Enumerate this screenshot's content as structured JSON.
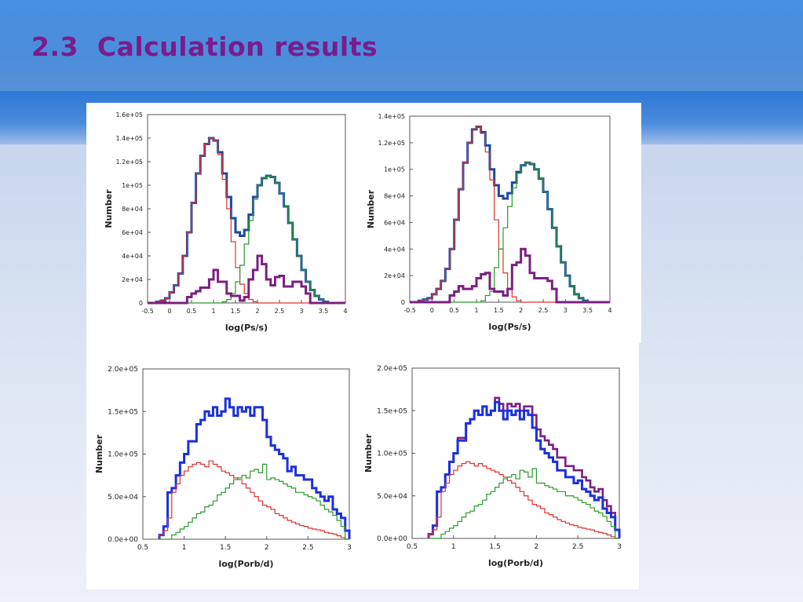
{
  "slide": {
    "title": "2.3  Calculation results"
  },
  "colors": {
    "title": "#7a1c8c",
    "blue": "#1a2fe0",
    "navy": "#1a4aa0",
    "purple": "#7a2080",
    "red": "#e03030",
    "green": "#2a9a2a"
  },
  "chart_data": [
    {
      "type": "line",
      "xlabel": "log(Ps/s)",
      "ylabel": "Number",
      "xlim": [
        -0.5,
        4
      ],
      "ylim": [
        0,
        160000
      ],
      "xticks": [
        "-0.5",
        "0",
        "0.5",
        "1",
        "1.5",
        "2",
        "2.5",
        "3",
        "3.5",
        "4"
      ],
      "yticks": [
        "0",
        "2e+04",
        "4e+04",
        "6e+04",
        "8e+04",
        "1e+05",
        "1.2e+05",
        "1.4e+05",
        "1.6e+05"
      ],
      "step": 0.1,
      "x": [
        -0.5,
        -0.4,
        -0.3,
        -0.2,
        -0.1,
        0,
        0.1,
        0.2,
        0.3,
        0.4,
        0.5,
        0.6,
        0.7,
        0.8,
        0.9,
        1,
        1.1,
        1.2,
        1.3,
        1.4,
        1.5,
        1.6,
        1.7,
        1.8,
        1.9,
        2,
        2.1,
        2.2,
        2.3,
        2.4,
        2.5,
        2.6,
        2.7,
        2.8,
        2.9,
        3,
        3.1,
        3.2,
        3.3,
        3.4,
        3.5,
        3.6,
        3.7,
        3.8,
        3.9
      ],
      "series": [
        {
          "key": "total",
          "color": "#1a4aa0",
          "values": [
            0,
            0,
            1000,
            2000,
            4000,
            9000,
            15000,
            25000,
            40000,
            60000,
            85000,
            110000,
            125000,
            135000,
            140000,
            138000,
            128000,
            110000,
            90000,
            72000,
            60000,
            57000,
            62000,
            75000,
            90000,
            100000,
            106000,
            108000,
            107000,
            102000,
            93000,
            82000,
            68000,
            54000,
            40000,
            28000,
            18000,
            11000,
            6000,
            3000,
            1000,
            0,
            0,
            0,
            0
          ]
        },
        {
          "key": "first-peak",
          "color": "#e03030",
          "values": [
            0,
            0,
            1000,
            2000,
            4000,
            9000,
            15000,
            25000,
            40000,
            60000,
            85000,
            110000,
            125000,
            135000,
            140000,
            138000,
            126000,
            105000,
            80000,
            52000,
            30000,
            16000,
            8000,
            3000,
            1000,
            0,
            0,
            0,
            0,
            0,
            0,
            0,
            0,
            0,
            0,
            0,
            0,
            0,
            0,
            0,
            0,
            0,
            0,
            0,
            0
          ]
        },
        {
          "key": "second-peak",
          "color": "#2a9a2a",
          "values": [
            0,
            0,
            0,
            0,
            0,
            0,
            0,
            0,
            0,
            0,
            0,
            0,
            0,
            0,
            0,
            0,
            0,
            1000,
            3000,
            8000,
            18000,
            32000,
            50000,
            70000,
            88000,
            100000,
            106000,
            108000,
            107000,
            102000,
            93000,
            82000,
            68000,
            54000,
            40000,
            28000,
            18000,
            11000,
            6000,
            3000,
            1000,
            0,
            0,
            0,
            0
          ]
        },
        {
          "key": "subset",
          "color": "#7a2080",
          "values": [
            0,
            0,
            0,
            0,
            0,
            0,
            0,
            0,
            0,
            5000,
            8000,
            10000,
            13000,
            13000,
            20000,
            28000,
            18000,
            18000,
            8000,
            6000,
            6000,
            2000,
            5000,
            20000,
            28000,
            40000,
            33000,
            20000,
            15000,
            22000,
            23000,
            14000,
            14000,
            18000,
            18000,
            14000,
            8000,
            0,
            0,
            0,
            0,
            0,
            0,
            0,
            0
          ]
        }
      ]
    },
    {
      "type": "line",
      "xlabel": "log(Ps/s)",
      "ylabel": "Number",
      "xlim": [
        -0.5,
        4
      ],
      "ylim": [
        0,
        140000
      ],
      "xticks": [
        "-0.5",
        "0",
        "0.5",
        "1",
        "1.5",
        "2",
        "2.5",
        "3",
        "3.5",
        "4"
      ],
      "yticks": [
        "0",
        "2e+04",
        "4e+04",
        "6e+04",
        "8e+04",
        "1e+05",
        "1.2e+05",
        "1.4e+05"
      ],
      "step": 0.1,
      "x": [
        -0.5,
        -0.4,
        -0.3,
        -0.2,
        -0.1,
        0,
        0.1,
        0.2,
        0.3,
        0.4,
        0.5,
        0.6,
        0.7,
        0.8,
        0.9,
        1,
        1.1,
        1.2,
        1.3,
        1.4,
        1.5,
        1.6,
        1.7,
        1.8,
        1.9,
        2,
        2.1,
        2.2,
        2.3,
        2.4,
        2.5,
        2.6,
        2.7,
        2.8,
        2.9,
        3,
        3.1,
        3.2,
        3.3,
        3.4,
        3.5,
        3.6,
        3.7,
        3.8,
        3.9
      ],
      "series": [
        {
          "key": "total",
          "color": "#1a4aa0",
          "values": [
            0,
            0,
            1000,
            2000,
            3000,
            6000,
            10000,
            16000,
            25000,
            40000,
            62000,
            85000,
            105000,
            120000,
            130000,
            132000,
            128000,
            118000,
            100000,
            88000,
            80000,
            78000,
            82000,
            90000,
            98000,
            103000,
            105000,
            104000,
            100000,
            93000,
            83000,
            70000,
            56000,
            42000,
            30000,
            20000,
            12000,
            6000,
            3000,
            1000,
            0,
            0,
            0,
            0,
            0
          ]
        },
        {
          "key": "first-peak",
          "color": "#e03030",
          "values": [
            0,
            0,
            1000,
            2000,
            3000,
            6000,
            10000,
            16000,
            25000,
            40000,
            62000,
            85000,
            105000,
            120000,
            130000,
            132000,
            127000,
            113000,
            92000,
            62000,
            40000,
            22000,
            10000,
            4000,
            1000,
            0,
            0,
            0,
            0,
            0,
            0,
            0,
            0,
            0,
            0,
            0,
            0,
            0,
            0,
            0,
            0,
            0,
            0,
            0,
            0
          ]
        },
        {
          "key": "second-peak",
          "color": "#2a9a2a",
          "values": [
            0,
            0,
            0,
            0,
            0,
            0,
            0,
            0,
            0,
            0,
            0,
            0,
            0,
            0,
            0,
            0,
            1000,
            5000,
            8000,
            26000,
            40000,
            56000,
            72000,
            86000,
            97000,
            103000,
            105000,
            104000,
            100000,
            93000,
            83000,
            70000,
            56000,
            42000,
            30000,
            20000,
            12000,
            6000,
            3000,
            1000,
            0,
            0,
            0,
            0,
            0
          ]
        },
        {
          "key": "subset",
          "color": "#7a2080",
          "values": [
            0,
            0,
            0,
            0,
            0,
            0,
            0,
            0,
            0,
            5000,
            8000,
            12000,
            10000,
            10000,
            12000,
            18000,
            21000,
            22000,
            10000,
            8000,
            8000,
            5000,
            10000,
            28000,
            30000,
            40000,
            35000,
            22000,
            18000,
            18000,
            18000,
            16000,
            10000,
            0,
            0,
            0,
            0,
            0,
            0,
            0,
            0,
            0,
            0,
            0,
            0
          ]
        }
      ]
    },
    {
      "type": "line",
      "xlabel": "log(Porb/d)",
      "ylabel": "Number",
      "xlim": [
        0.5,
        3
      ],
      "ylim": [
        0,
        200000
      ],
      "xticks": [
        "0.5",
        "1",
        "1.5",
        "2",
        "2.5",
        "3"
      ],
      "yticks": [
        "0.0e+00",
        "5.0e+04",
        "1.0e+05",
        "1.5e+05",
        "2.0e+05"
      ],
      "step": 0.05,
      "x": [
        0.7,
        0.75,
        0.8,
        0.85,
        0.9,
        0.95,
        1,
        1.05,
        1.1,
        1.15,
        1.2,
        1.25,
        1.3,
        1.35,
        1.4,
        1.45,
        1.5,
        1.55,
        1.6,
        1.65,
        1.7,
        1.75,
        1.8,
        1.85,
        1.9,
        1.95,
        2,
        2.05,
        2.1,
        2.15,
        2.2,
        2.25,
        2.3,
        2.35,
        2.4,
        2.45,
        2.5,
        2.55,
        2.6,
        2.65,
        2.7,
        2.75,
        2.8,
        2.85,
        2.9,
        2.95
      ],
      "series": [
        {
          "key": "total",
          "color": "#1a2fe0",
          "values": [
            5000,
            15000,
            55000,
            60000,
            75000,
            90000,
            100000,
            115000,
            115000,
            135000,
            140000,
            150000,
            145000,
            155000,
            145000,
            150000,
            165000,
            155000,
            145000,
            155000,
            150000,
            155000,
            145000,
            155000,
            155000,
            140000,
            120000,
            110000,
            105000,
            100000,
            95000,
            80000,
            85000,
            75000,
            75000,
            70000,
            70000,
            60000,
            55000,
            50000,
            45000,
            50000,
            35000,
            30000,
            25000,
            10000
          ]
        },
        {
          "key": "short-orbit",
          "color": "#e03030",
          "values": [
            5000,
            10000,
            25000,
            55000,
            65000,
            75000,
            80000,
            85000,
            88000,
            90000,
            88000,
            85000,
            92000,
            88000,
            85000,
            80000,
            78000,
            75000,
            72000,
            70000,
            65000,
            60000,
            55000,
            50000,
            45000,
            40000,
            38000,
            35000,
            30000,
            28000,
            25000,
            22000,
            20000,
            18000,
            16000,
            15000,
            13000,
            12000,
            11000,
            10000,
            8000,
            7000,
            6000,
            4000,
            2000,
            0
          ]
        },
        {
          "key": "long-orbit",
          "color": "#2a9a2a",
          "values": [
            0,
            0,
            0,
            5000,
            8000,
            12000,
            15000,
            20000,
            25000,
            30000,
            32000,
            38000,
            40000,
            45000,
            52000,
            55000,
            60000,
            65000,
            70000,
            72000,
            75000,
            72000,
            80000,
            82000,
            78000,
            88000,
            70000,
            72000,
            70000,
            68000,
            65000,
            62000,
            60000,
            55000,
            55000,
            52000,
            50000,
            48000,
            45000,
            40000,
            35000,
            32000,
            28000,
            22000,
            15000,
            0
          ]
        }
      ]
    },
    {
      "type": "line",
      "xlabel": "log(Porb/d)",
      "ylabel": "Number",
      "xlim": [
        0.5,
        3
      ],
      "ylim": [
        0,
        200000
      ],
      "xticks": [
        "0.5",
        "1",
        "1.5",
        "2",
        "2.5",
        "3"
      ],
      "yticks": [
        "0.0e+00",
        "5.0e+04",
        "1.0e+05",
        "1.5e+05",
        "2.0e+05"
      ],
      "step": 0.05,
      "x": [
        0.7,
        0.75,
        0.8,
        0.85,
        0.9,
        0.95,
        1,
        1.05,
        1.1,
        1.15,
        1.2,
        1.25,
        1.3,
        1.35,
        1.4,
        1.45,
        1.5,
        1.55,
        1.6,
        1.65,
        1.7,
        1.75,
        1.8,
        1.85,
        1.9,
        1.95,
        2,
        2.05,
        2.1,
        2.15,
        2.2,
        2.25,
        2.3,
        2.35,
        2.4,
        2.45,
        2.5,
        2.55,
        2.6,
        2.65,
        2.7,
        2.75,
        2.8,
        2.85,
        2.9,
        2.95
      ],
      "series": [
        {
          "key": "total-alt",
          "color": "#7a2080",
          "values": [
            5000,
            15000,
            55000,
            60000,
            75000,
            90000,
            100000,
            118000,
            118000,
            135000,
            140000,
            150000,
            145000,
            155000,
            145000,
            150000,
            165000,
            158000,
            150000,
            158000,
            155000,
            158000,
            150000,
            155000,
            155000,
            145000,
            128000,
            120000,
            115000,
            110000,
            105000,
            95000,
            95000,
            85000,
            85000,
            80000,
            80000,
            72000,
            68000,
            60000,
            55000,
            58000,
            45000,
            38000,
            30000,
            10000
          ]
        },
        {
          "key": "total",
          "color": "#1a2fe0",
          "values": [
            5000,
            15000,
            55000,
            60000,
            75000,
            90000,
            100000,
            115000,
            115000,
            135000,
            140000,
            150000,
            145000,
            155000,
            145000,
            150000,
            160000,
            150000,
            140000,
            150000,
            145000,
            150000,
            140000,
            150000,
            145000,
            130000,
            115000,
            105000,
            100000,
            95000,
            90000,
            80000,
            80000,
            72000,
            72000,
            65000,
            68000,
            58000,
            55000,
            50000,
            45000,
            48000,
            35000,
            30000,
            25000,
            10000
          ]
        },
        {
          "key": "short-orbit",
          "color": "#e03030",
          "values": [
            5000,
            10000,
            25000,
            55000,
            65000,
            75000,
            80000,
            85000,
            88000,
            90000,
            88000,
            85000,
            88000,
            85000,
            82000,
            80000,
            78000,
            75000,
            72000,
            68000,
            65000,
            60000,
            55000,
            50000,
            45000,
            40000,
            38000,
            35000,
            30000,
            28000,
            25000,
            22000,
            20000,
            18000,
            16000,
            15000,
            13000,
            12000,
            11000,
            10000,
            8000,
            7000,
            6000,
            4000,
            2000,
            0
          ]
        },
        {
          "key": "long-orbit",
          "color": "#2a9a2a",
          "values": [
            0,
            0,
            0,
            5000,
            8000,
            12000,
            15000,
            20000,
            25000,
            30000,
            32000,
            38000,
            40000,
            45000,
            52000,
            55000,
            60000,
            65000,
            70000,
            72000,
            75000,
            70000,
            80000,
            78000,
            72000,
            82000,
            65000,
            65000,
            62000,
            60000,
            58000,
            55000,
            55000,
            50000,
            50000,
            48000,
            45000,
            42000,
            40000,
            36000,
            32000,
            30000,
            26000,
            20000,
            14000,
            0
          ]
        }
      ]
    }
  ]
}
